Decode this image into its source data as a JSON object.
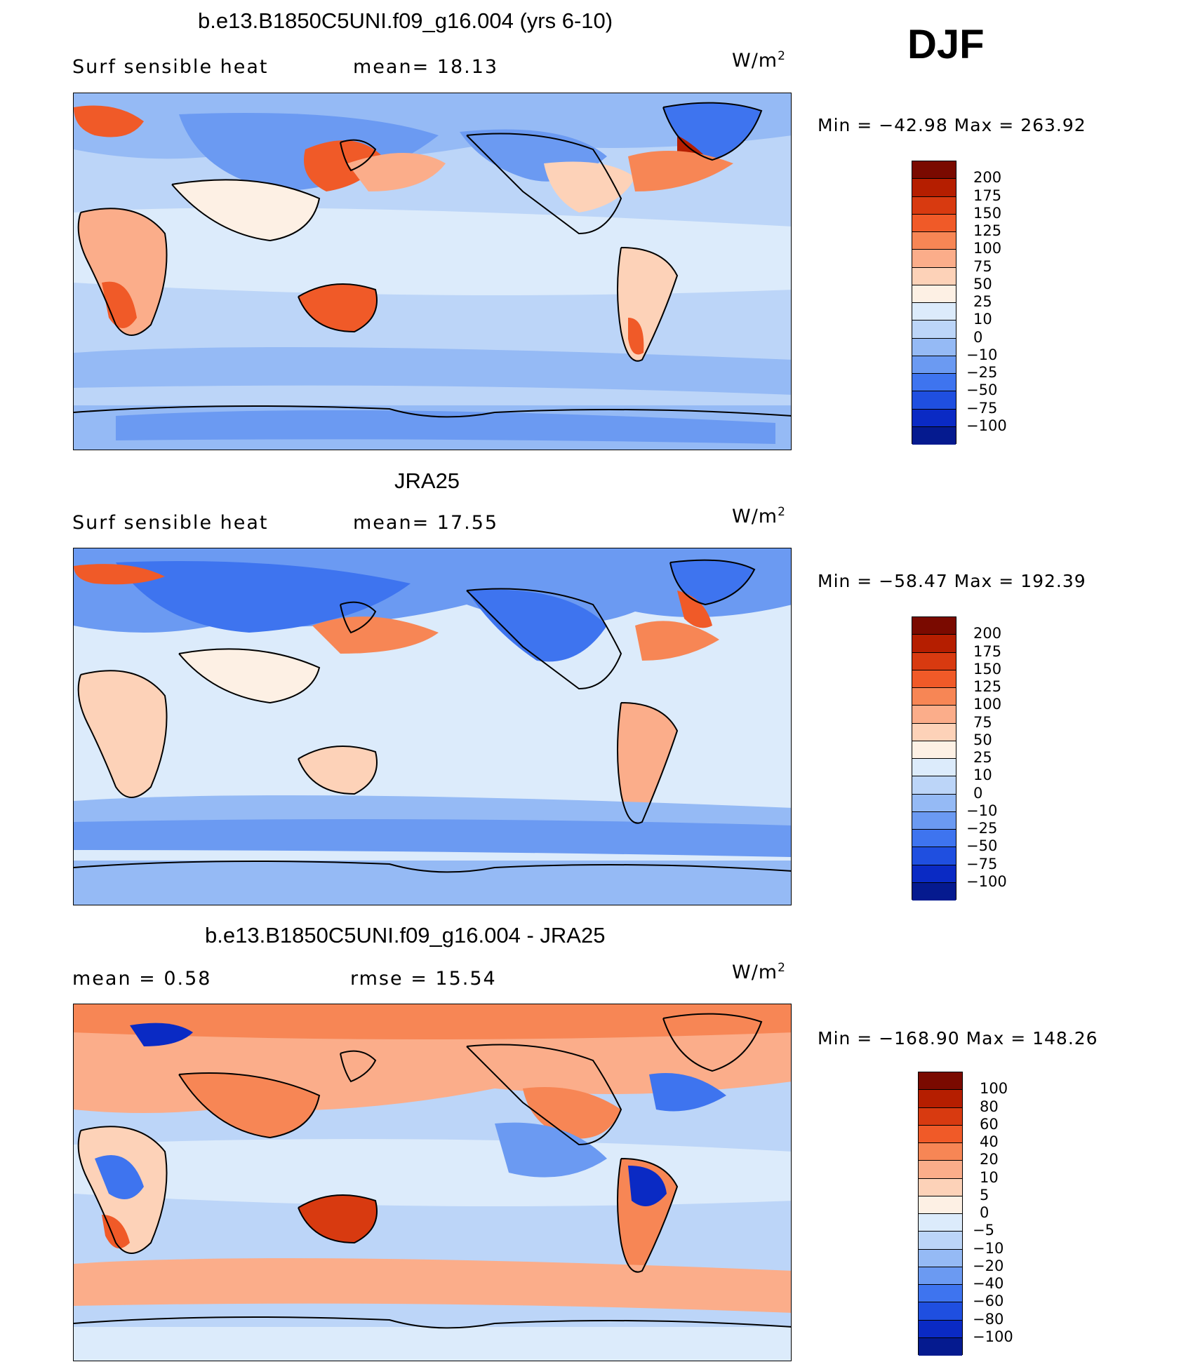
{
  "season": "DJF",
  "panels": [
    {
      "title": "b.e13.B1850C5UNI.f09_g16.004 (yrs 6-10)",
      "left_text": "Surf  sensible  heat",
      "mid_text": "mean=   18.13",
      "units": "W/m",
      "units_sup": "2",
      "minmax": "Min  =  −42.98  Max  =  263.92"
    },
    {
      "title": "JRA25",
      "left_text": "Surf  sensible  heat",
      "mid_text": "mean=   17.55",
      "units": "W/m",
      "units_sup": "2",
      "minmax": "Min  =  −58.47  Max  =  192.39"
    },
    {
      "title": "b.e13.B1850C5UNI.f09_g16.004 - JRA25",
      "left_text": "mean  =     0.58",
      "mid_text": "rmse  =    15.54",
      "units": "W/m",
      "units_sup": "2",
      "minmax": "Min  =  −168.90  Max  =  148.26"
    }
  ],
  "colorbars": [
    {
      "labels": [
        "200",
        "175",
        "150",
        "125",
        "100",
        "75",
        "50",
        "25",
        "10",
        "0",
        "−10",
        "−25",
        "−50",
        "−75",
        "−100"
      ],
      "colors": [
        "#7a0a00",
        "#b51e00",
        "#d83a10",
        "#f05a28",
        "#f78655",
        "#fbad8a",
        "#fdd2b8",
        "#fdf0e4",
        "#dcebfb",
        "#bcd5f8",
        "#95baf5",
        "#6b9af2",
        "#3e74ef",
        "#1f4fe0",
        "#0a2ac4",
        "#051a8f"
      ]
    },
    {
      "labels": [
        "200",
        "175",
        "150",
        "125",
        "100",
        "75",
        "50",
        "25",
        "10",
        "0",
        "−10",
        "−25",
        "−50",
        "−75",
        "−100"
      ],
      "colors": [
        "#7a0a00",
        "#b51e00",
        "#d83a10",
        "#f05a28",
        "#f78655",
        "#fbad8a",
        "#fdd2b8",
        "#fdf0e4",
        "#dcebfb",
        "#bcd5f8",
        "#95baf5",
        "#6b9af2",
        "#3e74ef",
        "#1f4fe0",
        "#0a2ac4",
        "#051a8f"
      ]
    },
    {
      "labels": [
        "100",
        "80",
        "60",
        "40",
        "20",
        "10",
        "5",
        "0",
        "−5",
        "−10",
        "−20",
        "−40",
        "−60",
        "−80",
        "−100"
      ],
      "colors": [
        "#7a0a00",
        "#b51e00",
        "#d83a10",
        "#f05a28",
        "#f78655",
        "#fbad8a",
        "#fdd2b8",
        "#fdf0e4",
        "#dcebfb",
        "#bcd5f8",
        "#95baf5",
        "#6b9af2",
        "#3e74ef",
        "#1f4fe0",
        "#0a2ac4",
        "#051a8f"
      ]
    }
  ]
}
